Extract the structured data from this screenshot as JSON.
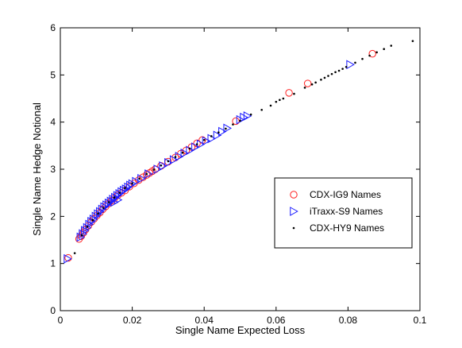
{
  "chart_data": {
    "type": "scatter",
    "title": "",
    "xlabel": "Single Name Expected Loss",
    "ylabel": "Single Name Hedge Notional",
    "xlim": [
      0,
      0.1
    ],
    "ylim": [
      0,
      6
    ],
    "xticks": [
      "0",
      "0.02",
      "0.04",
      "0.06",
      "0.08",
      "0.1"
    ],
    "yticks": [
      "0",
      "1",
      "2",
      "3",
      "4",
      "5",
      "6"
    ],
    "grid": false,
    "legend_position": "right",
    "colors": {
      "ig9": "#ff2020",
      "itraxx": "#1a1aff",
      "hy9": "#000000",
      "axis": "#000000"
    },
    "series": [
      {
        "name": "CDX-IG9 Names",
        "marker": "circle",
        "points": [
          [
            0.0022,
            1.12
          ],
          [
            0.0052,
            1.52
          ],
          [
            0.0058,
            1.58
          ],
          [
            0.0064,
            1.65
          ],
          [
            0.007,
            1.72
          ],
          [
            0.0078,
            1.8
          ],
          [
            0.0086,
            1.88
          ],
          [
            0.0094,
            1.95
          ],
          [
            0.0102,
            2.02
          ],
          [
            0.011,
            2.08
          ],
          [
            0.0118,
            2.15
          ],
          [
            0.0126,
            2.21
          ],
          [
            0.0134,
            2.27
          ],
          [
            0.0142,
            2.33
          ],
          [
            0.015,
            2.38
          ],
          [
            0.016,
            2.45
          ],
          [
            0.017,
            2.5
          ],
          [
            0.018,
            2.55
          ],
          [
            0.0192,
            2.63
          ],
          [
            0.0205,
            2.7
          ],
          [
            0.0218,
            2.77
          ],
          [
            0.023,
            2.83
          ],
          [
            0.024,
            2.88
          ],
          [
            0.0248,
            2.92
          ],
          [
            0.0256,
            2.96
          ],
          [
            0.0264,
            3.0
          ],
          [
            0.028,
            3.07
          ],
          [
            0.03,
            3.16
          ],
          [
            0.032,
            3.25
          ],
          [
            0.0335,
            3.33
          ],
          [
            0.035,
            3.4
          ],
          [
            0.0365,
            3.47
          ],
          [
            0.038,
            3.55
          ],
          [
            0.0395,
            3.62
          ],
          [
            0.0488,
            4.02
          ],
          [
            0.0636,
            4.62
          ],
          [
            0.0688,
            4.82
          ],
          [
            0.0868,
            5.45
          ]
        ]
      },
      {
        "name": "iTraxx-S9 Names",
        "marker": "triangle-right",
        "points": [
          [
            0.002,
            1.1
          ],
          [
            0.0056,
            1.56
          ],
          [
            0.0062,
            1.63
          ],
          [
            0.0068,
            1.7
          ],
          [
            0.0074,
            1.76
          ],
          [
            0.008,
            1.83
          ],
          [
            0.0086,
            1.89
          ],
          [
            0.0092,
            1.94
          ],
          [
            0.0098,
            2.0
          ],
          [
            0.0104,
            2.05
          ],
          [
            0.011,
            2.1
          ],
          [
            0.0116,
            2.15
          ],
          [
            0.0122,
            2.2
          ],
          [
            0.0128,
            2.24
          ],
          [
            0.0134,
            2.28
          ],
          [
            0.014,
            2.32
          ],
          [
            0.0146,
            2.36
          ],
          [
            0.0152,
            2.4
          ],
          [
            0.0158,
            2.44
          ],
          [
            0.0164,
            2.48
          ],
          [
            0.017,
            2.52
          ],
          [
            0.0176,
            2.55
          ],
          [
            0.0182,
            2.58
          ],
          [
            0.0188,
            2.62
          ],
          [
            0.0194,
            2.66
          ],
          [
            0.02,
            2.69
          ],
          [
            0.021,
            2.74
          ],
          [
            0.0225,
            2.8
          ],
          [
            0.0245,
            2.9
          ],
          [
            0.027,
            3.0
          ],
          [
            0.0285,
            3.07
          ],
          [
            0.03,
            3.14
          ],
          [
            0.0315,
            3.2
          ],
          [
            0.033,
            3.27
          ],
          [
            0.0345,
            3.34
          ],
          [
            0.036,
            3.4
          ],
          [
            0.0375,
            3.47
          ],
          [
            0.039,
            3.53
          ],
          [
            0.0405,
            3.6
          ],
          [
            0.042,
            3.65
          ],
          [
            0.0436,
            3.72
          ],
          [
            0.045,
            3.8
          ],
          [
            0.0464,
            3.87
          ],
          [
            0.05,
            4.05
          ],
          [
            0.051,
            4.1
          ],
          [
            0.052,
            4.13
          ],
          [
            0.0806,
            5.22
          ],
          [
            0.015,
            2.3
          ],
          [
            0.016,
            2.35
          ]
        ]
      },
      {
        "name": "CDX-HY9 Names",
        "marker": "dot",
        "points": [
          [
            0.004,
            1.22
          ],
          [
            0.006,
            1.6
          ],
          [
            0.0075,
            1.78
          ],
          [
            0.009,
            1.92
          ],
          [
            0.0105,
            2.06
          ],
          [
            0.012,
            2.18
          ],
          [
            0.0135,
            2.3
          ],
          [
            0.015,
            2.4
          ],
          [
            0.0165,
            2.5
          ],
          [
            0.018,
            2.6
          ],
          [
            0.02,
            2.7
          ],
          [
            0.022,
            2.8
          ],
          [
            0.024,
            2.9
          ],
          [
            0.026,
            2.99
          ],
          [
            0.028,
            3.08
          ],
          [
            0.03,
            3.17
          ],
          [
            0.032,
            3.26
          ],
          [
            0.034,
            3.35
          ],
          [
            0.036,
            3.44
          ],
          [
            0.038,
            3.53
          ],
          [
            0.04,
            3.62
          ],
          [
            0.042,
            3.7
          ],
          [
            0.044,
            3.78
          ],
          [
            0.046,
            3.86
          ],
          [
            0.048,
            3.95
          ],
          [
            0.05,
            4.03
          ],
          [
            0.053,
            4.16
          ],
          [
            0.056,
            4.26
          ],
          [
            0.0585,
            4.35
          ],
          [
            0.06,
            4.43
          ],
          [
            0.061,
            4.47
          ],
          [
            0.062,
            4.5
          ],
          [
            0.065,
            4.6
          ],
          [
            0.068,
            4.73
          ],
          [
            0.07,
            4.8
          ],
          [
            0.071,
            4.84
          ],
          [
            0.0725,
            4.9
          ],
          [
            0.0735,
            4.94
          ],
          [
            0.0745,
            4.98
          ],
          [
            0.0755,
            5.02
          ],
          [
            0.0765,
            5.06
          ],
          [
            0.0775,
            5.09
          ],
          [
            0.0785,
            5.13
          ],
          [
            0.0795,
            5.17
          ],
          [
            0.082,
            5.26
          ],
          [
            0.084,
            5.34
          ],
          [
            0.086,
            5.41
          ],
          [
            0.088,
            5.48
          ],
          [
            0.09,
            5.55
          ],
          [
            0.092,
            5.62
          ],
          [
            0.098,
            5.72
          ]
        ]
      }
    ]
  }
}
